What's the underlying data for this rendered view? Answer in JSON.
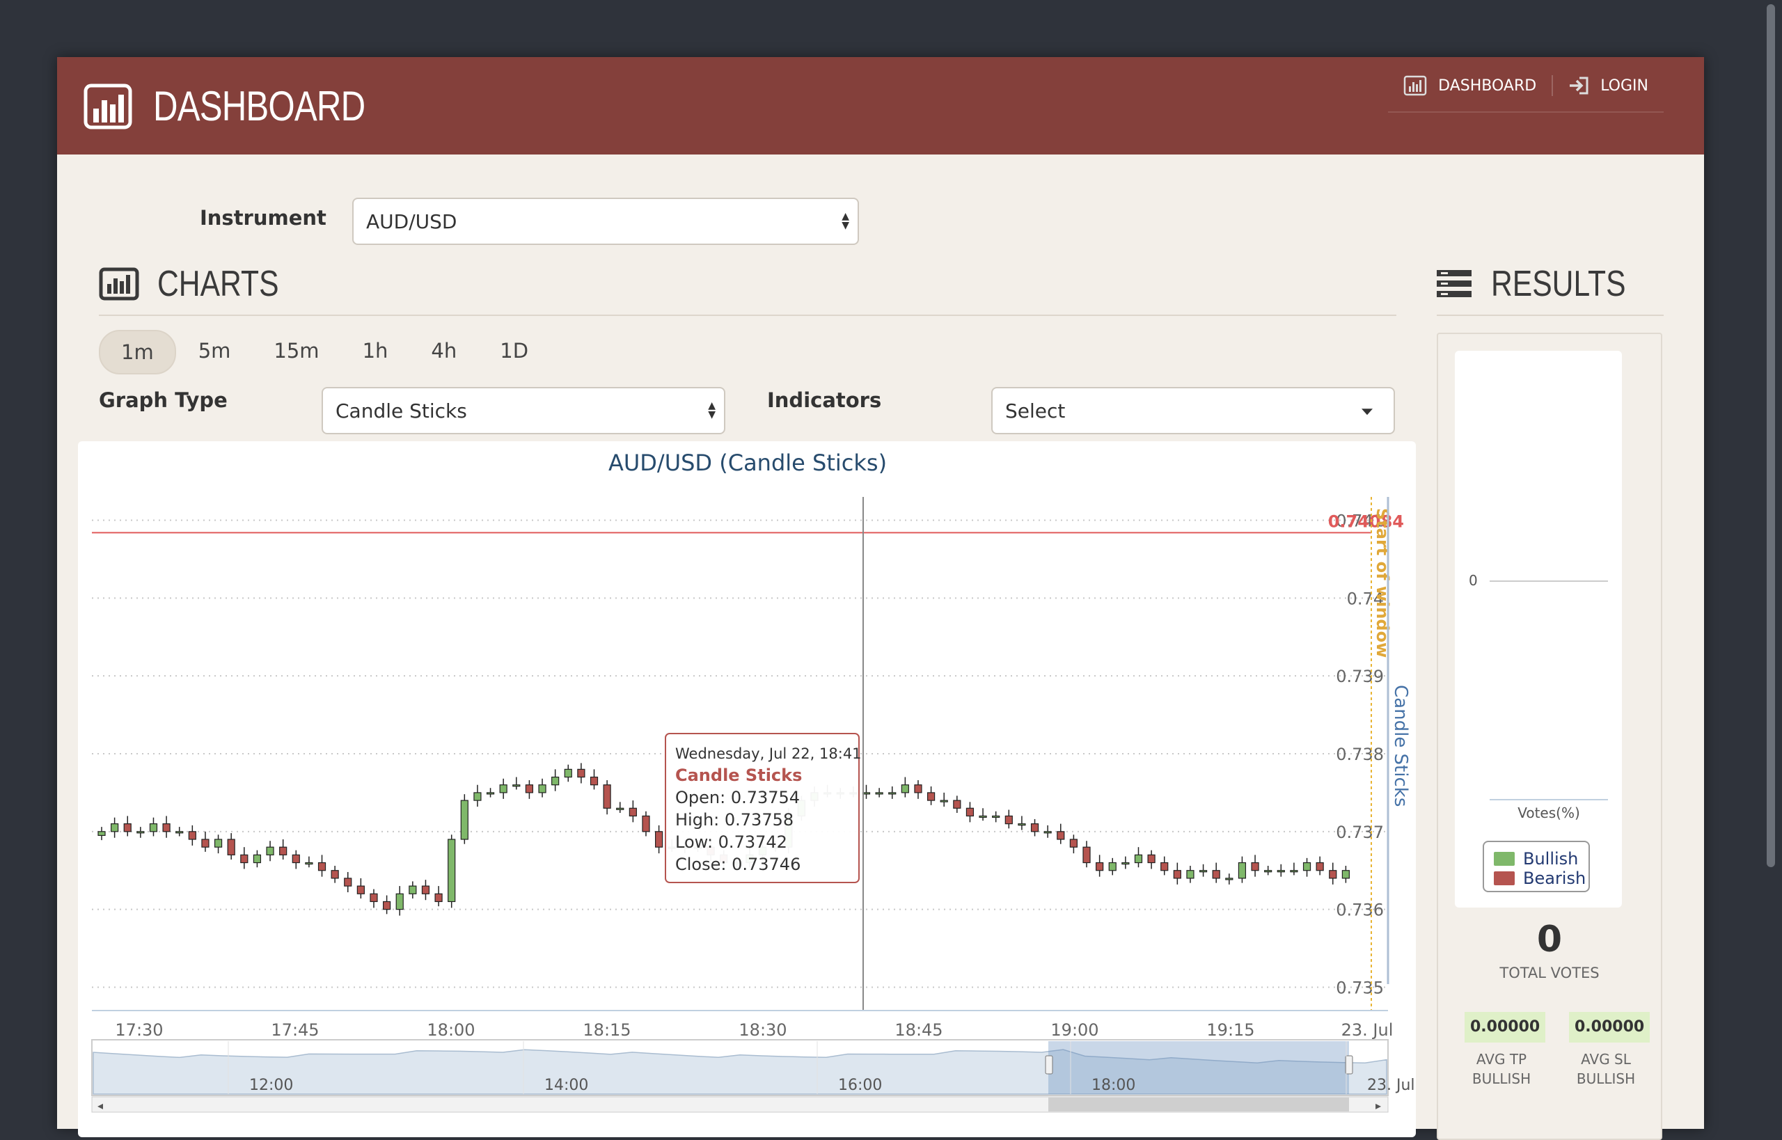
{
  "header": {
    "title": "DASHBOARD",
    "nav": [
      {
        "label": "DASHBOARD",
        "icon": "bar-chart-icon"
      },
      {
        "label": "LOGIN",
        "icon": "login-icon"
      }
    ]
  },
  "instrument": {
    "label": "Instrument",
    "value": "AUD/USD"
  },
  "charts_section": {
    "title": "CHARTS"
  },
  "results_section": {
    "title": "RESULTS"
  },
  "timeframes": [
    "1m",
    "5m",
    "15m",
    "1h",
    "4h",
    "1D"
  ],
  "active_timeframe": "1m",
  "graph_type": {
    "label": "Graph Type",
    "value": "Candle Sticks"
  },
  "indicators": {
    "label": "Indicators",
    "value": "Select"
  },
  "chart_data": {
    "type": "candlestick",
    "title": "AUD/USD (Candle Sticks)",
    "y_axis_title": "Candle Sticks",
    "yticks": [
      "0.735",
      "0.736",
      "0.737",
      "0.738",
      "0.739",
      "0.74",
      "0.741"
    ],
    "ylim": [
      0.7347,
      0.7413
    ],
    "xticks": [
      "17:30",
      "17:45",
      "18:00",
      "18:15",
      "18:30",
      "18:45",
      "19:00",
      "19:15",
      "23. Jul"
    ],
    "price_line": {
      "value": "0.74084",
      "color": "#e05a5a"
    },
    "plotband_label": "Start of window",
    "crosshair_time": "18:41",
    "tooltip": {
      "date": "Wednesday, Jul 22, 18:41",
      "series": "Candle Sticks",
      "open_label": "Open: 0.73754",
      "high_label": "High: 0.73758",
      "low_label": "Low: 0.73742",
      "close_label": "Close: 0.73746"
    },
    "closes": [
      0.737,
      0.7371,
      0.737,
      0.737,
      0.7371,
      0.737,
      0.737,
      0.7369,
      0.7368,
      0.7369,
      0.7367,
      0.7366,
      0.7367,
      0.7368,
      0.7367,
      0.7366,
      0.7366,
      0.7365,
      0.7364,
      0.7363,
      0.7362,
      0.7361,
      0.736,
      0.7362,
      0.7363,
      0.7362,
      0.7361,
      0.7369,
      0.7374,
      0.7375,
      0.7375,
      0.7376,
      0.7376,
      0.7375,
      0.7376,
      0.7377,
      0.7378,
      0.7377,
      0.7376,
      0.7373,
      0.7373,
      0.7372,
      0.737,
      0.7368,
      0.7368,
      0.7368,
      0.7368,
      0.7367,
      0.7366,
      0.7366,
      0.7367,
      0.7368,
      0.7368,
      0.7372,
      0.7374,
      0.7375,
      0.7375,
      0.7375,
      0.7375,
      0.7375,
      0.7375,
      0.7375,
      0.7376,
      0.7375,
      0.7374,
      0.7374,
      0.7373,
      0.7372,
      0.7372,
      0.7372,
      0.7371,
      0.7371,
      0.737,
      0.737,
      0.7369,
      0.7368,
      0.7366,
      0.7365,
      0.7366,
      0.7366,
      0.7367,
      0.7366,
      0.7365,
      0.7364,
      0.7365,
      0.7365,
      0.7364,
      0.7364,
      0.7366,
      0.7365,
      0.7365,
      0.7365,
      0.7365,
      0.7366,
      0.7365,
      0.7364,
      0.7365
    ],
    "navigator": {
      "xticks": [
        "12:00",
        "14:00",
        "16:00",
        "18:00",
        "23. Jul"
      ]
    }
  },
  "results": {
    "vote_axis_tick": "0",
    "votes_label": "Votes(%)",
    "legend": [
      {
        "name": "Bullish",
        "color": "#7fb86a"
      },
      {
        "name": "Bearish",
        "color": "#b5544f"
      }
    ],
    "total_votes": "0",
    "total_votes_label": "TOTAL VOTES",
    "avg_tp": {
      "value": "0.00000",
      "label1": "AVG TP",
      "label2": "BULLISH"
    },
    "avg_sl": {
      "value": "0.00000",
      "label1": "AVG SL",
      "label2": "BULLISH"
    }
  }
}
